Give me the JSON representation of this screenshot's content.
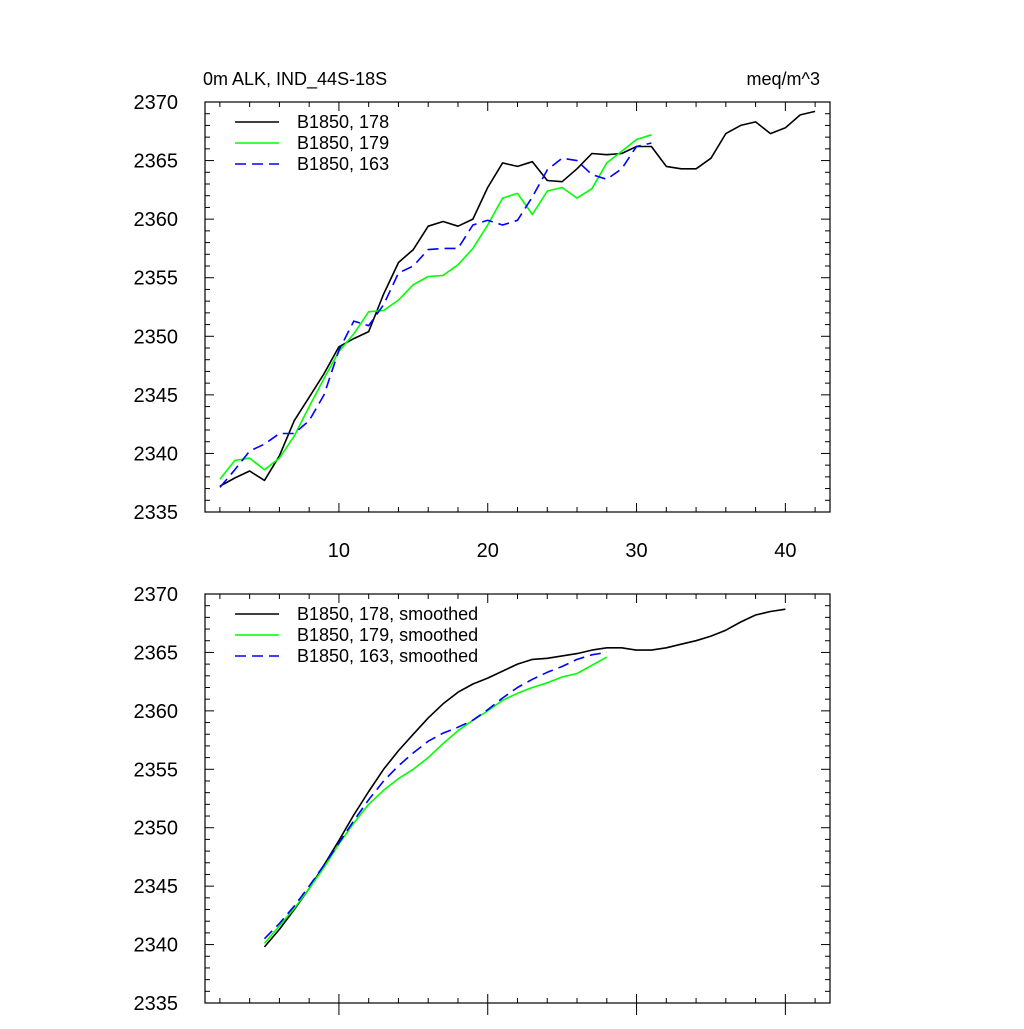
{
  "chart_data": [
    {
      "type": "line",
      "title_left": "0m ALK, IND_44S-18S",
      "title_right": "meq/m^3",
      "xlim": [
        1,
        43
      ],
      "ylim": [
        2335,
        2370
      ],
      "xticks": [
        10,
        20,
        30,
        40
      ],
      "yticks": [
        2335,
        2340,
        2345,
        2350,
        2355,
        2360,
        2365,
        2370
      ],
      "show_xtick_labels": true,
      "series": [
        {
          "name": "B1850, 178",
          "color": "#000000",
          "dash": "solid",
          "x": [
            2,
            3,
            4,
            5,
            6,
            7,
            8,
            9,
            10,
            11,
            12,
            13,
            14,
            15,
            16,
            17,
            18,
            19,
            20,
            21,
            22,
            23,
            24,
            25,
            26,
            27,
            28,
            29,
            30,
            31,
            32,
            33,
            34,
            35,
            36,
            37,
            38,
            39,
            40,
            41,
            42
          ],
          "y": [
            2337.2,
            2337.9,
            2338.5,
            2337.7,
            2339.8,
            2342.8,
            2344.8,
            2346.8,
            2349.1,
            2349.8,
            2350.4,
            2353.6,
            2356.3,
            2357.4,
            2359.4,
            2359.8,
            2359.4,
            2360.0,
            2362.7,
            2364.8,
            2364.5,
            2364.9,
            2363.3,
            2363.2,
            2364.3,
            2365.6,
            2365.5,
            2365.6,
            2366.2,
            2366.2,
            2364.5,
            2364.3,
            2364.3,
            2365.2,
            2367.3,
            2368.0,
            2368.3,
            2367.3,
            2367.8,
            2368.9,
            2369.2
          ]
        },
        {
          "name": "B1850, 179",
          "color": "#00ff00",
          "dash": "solid",
          "x": [
            2,
            3,
            4,
            5,
            6,
            7,
            8,
            9,
            10,
            11,
            12,
            13,
            14,
            15,
            16,
            17,
            18,
            19,
            20,
            21,
            22,
            23,
            24,
            25,
            26,
            27,
            28,
            29,
            30,
            31
          ],
          "y": [
            2337.8,
            2339.4,
            2339.6,
            2338.6,
            2339.6,
            2341.5,
            2344.0,
            2346.4,
            2348.7,
            2350.2,
            2352.1,
            2352.2,
            2353.1,
            2354.4,
            2355.1,
            2355.2,
            2356.1,
            2357.5,
            2359.5,
            2361.8,
            2362.2,
            2360.4,
            2362.4,
            2362.7,
            2361.8,
            2362.6,
            2364.8,
            2365.8,
            2366.8,
            2367.2
          ]
        },
        {
          "name": "B1850, 163",
          "color": "#0000ff",
          "dash": "dashed",
          "x": [
            2,
            3,
            4,
            5,
            6,
            7,
            8,
            9,
            10,
            11,
            12,
            13,
            14,
            15,
            16,
            17,
            18,
            19,
            20,
            21,
            22,
            23,
            24,
            25,
            26,
            27,
            28,
            29,
            30,
            31
          ],
          "y": [
            2337.1,
            2338.6,
            2340.2,
            2340.8,
            2341.7,
            2341.7,
            2342.8,
            2345.0,
            2348.8,
            2351.3,
            2350.9,
            2352.7,
            2355.4,
            2356.0,
            2357.4,
            2357.5,
            2357.5,
            2359.5,
            2359.9,
            2359.5,
            2359.9,
            2361.9,
            2364.2,
            2365.2,
            2365.0,
            2363.8,
            2363.4,
            2364.3,
            2366.2,
            2366.5
          ]
        }
      ]
    },
    {
      "type": "line",
      "xlim": [
        1,
        43
      ],
      "ylim": [
        2335,
        2370
      ],
      "xticks": [
        10,
        20,
        30,
        40
      ],
      "yticks": [
        2335,
        2340,
        2345,
        2350,
        2355,
        2360,
        2365,
        2370
      ],
      "show_xtick_labels": false,
      "series": [
        {
          "name": "B1850, 178, smoothed",
          "color": "#000000",
          "dash": "solid",
          "x": [
            5,
            6,
            7,
            8,
            9,
            10,
            11,
            12,
            13,
            14,
            15,
            16,
            17,
            18,
            19,
            20,
            21,
            22,
            23,
            24,
            25,
            26,
            27,
            28,
            29,
            30,
            31,
            32,
            33,
            34,
            35,
            36,
            37,
            38,
            39,
            40
          ],
          "y": [
            2339.8,
            2341.3,
            2343.0,
            2344.8,
            2346.8,
            2348.9,
            2351.1,
            2353.1,
            2355.0,
            2356.6,
            2358.0,
            2359.4,
            2360.6,
            2361.6,
            2362.3,
            2362.8,
            2363.4,
            2364.0,
            2364.4,
            2364.5,
            2364.7,
            2364.9,
            2365.2,
            2365.4,
            2365.4,
            2365.2,
            2365.2,
            2365.4,
            2365.7,
            2366.0,
            2366.4,
            2366.9,
            2367.6,
            2368.2,
            2368.5,
            2368.7
          ]
        },
        {
          "name": "B1850, 179, smoothed",
          "color": "#00ff00",
          "dash": "solid",
          "x": [
            5,
            6,
            7,
            8,
            9,
            10,
            11,
            12,
            13,
            14,
            15,
            16,
            17,
            18,
            19,
            20,
            21,
            22,
            23,
            24,
            25,
            26,
            27,
            28
          ],
          "y": [
            2340.1,
            2341.6,
            2343.1,
            2344.8,
            2346.6,
            2348.6,
            2350.4,
            2352.0,
            2353.2,
            2354.2,
            2355.0,
            2356.0,
            2357.2,
            2358.3,
            2359.2,
            2360.0,
            2360.9,
            2361.5,
            2362.0,
            2362.4,
            2362.9,
            2363.2,
            2363.9,
            2364.6
          ]
        },
        {
          "name": "B1850, 163, smoothed",
          "color": "#0000ff",
          "dash": "dashed",
          "x": [
            5,
            6,
            7,
            8,
            9,
            10,
            11,
            12,
            13,
            14,
            15,
            16,
            17,
            18,
            19,
            20,
            21,
            22,
            23,
            24,
            25,
            26,
            27,
            28
          ],
          "y": [
            2340.5,
            2341.8,
            2343.3,
            2345.0,
            2346.8,
            2348.7,
            2350.6,
            2352.4,
            2354.0,
            2355.3,
            2356.4,
            2357.4,
            2358.1,
            2358.6,
            2359.2,
            2360.1,
            2361.1,
            2362.0,
            2362.7,
            2363.3,
            2363.8,
            2364.4,
            2364.8,
            2365.0
          ]
        }
      ]
    }
  ]
}
